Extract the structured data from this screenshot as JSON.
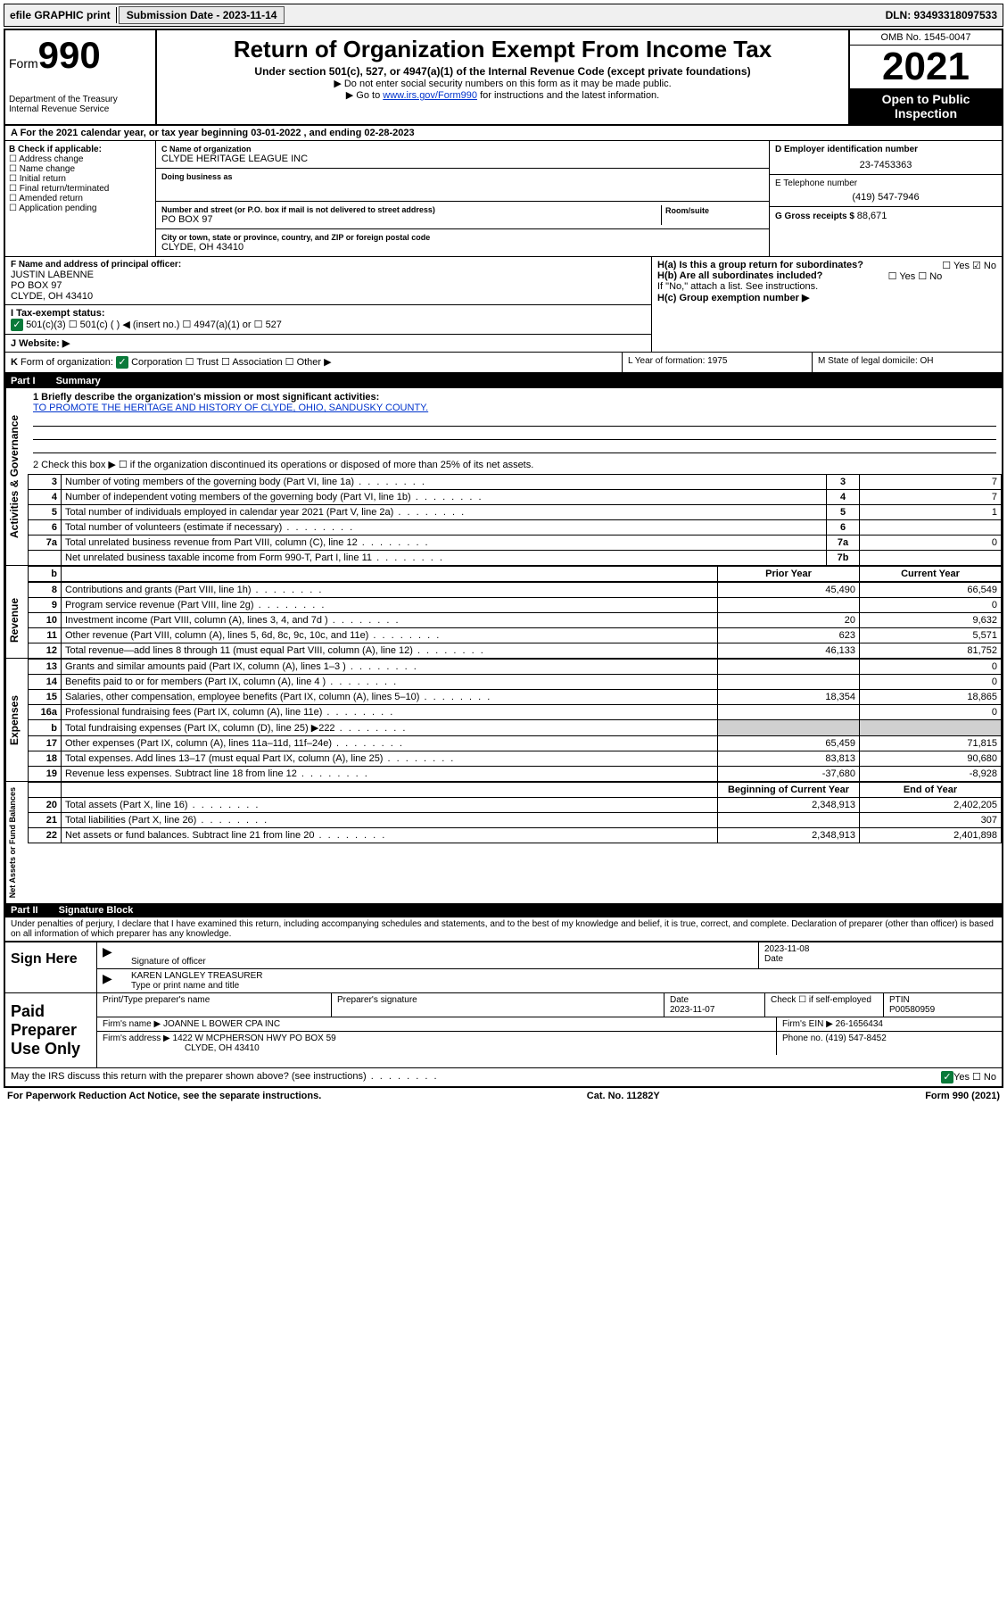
{
  "top": {
    "efile": "efile GRAPHIC print",
    "submission_label": "Submission Date - 2023-11-14",
    "dln_label": "DLN: 93493318097533"
  },
  "header": {
    "form_word": "Form",
    "form_num": "990",
    "dept": "Department of the Treasury",
    "irs": "Internal Revenue Service",
    "title": "Return of Organization Exempt From Income Tax",
    "subtitle": "Under section 501(c), 527, or 4947(a)(1) of the Internal Revenue Code (except private foundations)",
    "note1": "▶ Do not enter social security numbers on this form as it may be made public.",
    "note2_pre": "▶ Go to ",
    "note2_link": "www.irs.gov/Form990",
    "note2_post": " for instructions and the latest information.",
    "omb": "OMB No. 1545-0047",
    "year": "2021",
    "open": "Open to Public Inspection"
  },
  "row_a": "A For the 2021 calendar year, or tax year beginning 03-01-2022   , and ending 02-28-2023",
  "col_b": {
    "label": "B Check if applicable:",
    "opts": [
      "☐ Address change",
      "☐ Name change",
      "☐ Initial return",
      "☐ Final return/terminated",
      "☐ Amended return",
      "☐ Application pending"
    ]
  },
  "col_c": {
    "name_lab": "C Name of organization",
    "name": "CLYDE HERITAGE LEAGUE INC",
    "dba_lab": "Doing business as",
    "dba": "",
    "addr_lab": "Number and street (or P.O. box if mail is not delivered to street address)",
    "room_lab": "Room/suite",
    "addr": "PO BOX 97",
    "city_lab": "City or town, state or province, country, and ZIP or foreign postal code",
    "city": "CLYDE, OH  43410"
  },
  "col_de": {
    "d_lab": "D Employer identification number",
    "d_val": "23-7453363",
    "e_lab": "E Telephone number",
    "e_val": "(419) 547-7946",
    "g_lab": "G Gross receipts $ ",
    "g_val": "88,671"
  },
  "f": {
    "lab": "F  Name and address of principal officer:",
    "name": "JUSTIN LABENNE",
    "addr1": "PO BOX 97",
    "addr2": "CLYDE, OH  43410"
  },
  "i": {
    "lab": "I   Tax-exempt status:",
    "opts": "501(c)(3)    ☐   501(c) (  ) ◀ (insert no.)     ☐  4947(a)(1) or   ☐  527"
  },
  "j": {
    "lab": "J   Website: ▶"
  },
  "h": {
    "a": "H(a)  Is this a group return for subordinates?",
    "a_ans": "☐ Yes  ☑ No",
    "b": "H(b)  Are all subordinates included?",
    "b_ans": "☐ Yes  ☐ No",
    "b_note": "If \"No,\" attach a list. See instructions.",
    "c": "H(c)  Group exemption number ▶"
  },
  "k": "K Form of organization:  ☑ Corporation  ☐ Trust  ☐ Association  ☐ Other ▶",
  "l": "L Year of formation: 1975",
  "m": "M State of legal domicile: OH",
  "part1": {
    "num": "Part I",
    "title": "Summary"
  },
  "brief": {
    "q1": "1  Briefly describe the organization's mission or most significant activities:",
    "ans": "TO PROMOTE THE HERITAGE AND HISTORY OF CLYDE, OHIO, SANDUSKY COUNTY.",
    "q2": "2  Check this box ▶ ☐  if the organization discontinued its operations or disposed of more than 25% of its net assets."
  },
  "gov_rows": [
    {
      "n": "3",
      "d": "Number of voting members of the governing body (Part VI, line 1a)",
      "box": "3",
      "v": "7"
    },
    {
      "n": "4",
      "d": "Number of independent voting members of the governing body (Part VI, line 1b)",
      "box": "4",
      "v": "7"
    },
    {
      "n": "5",
      "d": "Total number of individuals employed in calendar year 2021 (Part V, line 2a)",
      "box": "5",
      "v": "1"
    },
    {
      "n": "6",
      "d": "Total number of volunteers (estimate if necessary)",
      "box": "6",
      "v": ""
    },
    {
      "n": "7a",
      "d": "Total unrelated business revenue from Part VIII, column (C), line 12",
      "box": "7a",
      "v": "0"
    },
    {
      "n": "",
      "d": "Net unrelated business taxable income from Form 990-T, Part I, line 11",
      "box": "7b",
      "v": ""
    }
  ],
  "col_hdr": {
    "b": "b",
    "prior": "Prior Year",
    "curr": "Current Year"
  },
  "rev_rows": [
    {
      "n": "8",
      "d": "Contributions and grants (Part VIII, line 1h)",
      "p": "45,490",
      "c": "66,549"
    },
    {
      "n": "9",
      "d": "Program service revenue (Part VIII, line 2g)",
      "p": "",
      "c": "0"
    },
    {
      "n": "10",
      "d": "Investment income (Part VIII, column (A), lines 3, 4, and 7d )",
      "p": "20",
      "c": "9,632"
    },
    {
      "n": "11",
      "d": "Other revenue (Part VIII, column (A), lines 5, 6d, 8c, 9c, 10c, and 11e)",
      "p": "623",
      "c": "5,571"
    },
    {
      "n": "12",
      "d": "Total revenue—add lines 8 through 11 (must equal Part VIII, column (A), line 12)",
      "p": "46,133",
      "c": "81,752"
    }
  ],
  "exp_rows": [
    {
      "n": "13",
      "d": "Grants and similar amounts paid (Part IX, column (A), lines 1–3 )",
      "p": "",
      "c": "0"
    },
    {
      "n": "14",
      "d": "Benefits paid to or for members (Part IX, column (A), line 4 )",
      "p": "",
      "c": "0"
    },
    {
      "n": "15",
      "d": "Salaries, other compensation, employee benefits (Part IX, column (A), lines 5–10)",
      "p": "18,354",
      "c": "18,865"
    },
    {
      "n": "16a",
      "d": "Professional fundraising fees (Part IX, column (A), line 11e)",
      "p": "",
      "c": "0"
    },
    {
      "n": "b",
      "d": "Total fundraising expenses (Part IX, column (D), line 25) ▶222",
      "p": "SHADE",
      "c": "SHADE"
    },
    {
      "n": "17",
      "d": "Other expenses (Part IX, column (A), lines 11a–11d, 11f–24e)",
      "p": "65,459",
      "c": "71,815"
    },
    {
      "n": "18",
      "d": "Total expenses. Add lines 13–17 (must equal Part IX, column (A), line 25)",
      "p": "83,813",
      "c": "90,680"
    },
    {
      "n": "19",
      "d": "Revenue less expenses. Subtract line 18 from line 12",
      "p": "-37,680",
      "c": "-8,928"
    }
  ],
  "net_hdr": {
    "beg": "Beginning of Current Year",
    "end": "End of Year"
  },
  "net_rows": [
    {
      "n": "20",
      "d": "Total assets (Part X, line 16)",
      "p": "2,348,913",
      "c": "2,402,205"
    },
    {
      "n": "21",
      "d": "Total liabilities (Part X, line 26)",
      "p": "",
      "c": "307"
    },
    {
      "n": "22",
      "d": "Net assets or fund balances. Subtract line 21 from line 20",
      "p": "2,348,913",
      "c": "2,401,898"
    }
  ],
  "side": {
    "gov": "Activities & Governance",
    "rev": "Revenue",
    "exp": "Expenses",
    "net": "Net Assets or Fund Balances"
  },
  "part2": {
    "num": "Part II",
    "title": "Signature Block"
  },
  "penalty": "Under penalties of perjury, I declare that I have examined this return, including accompanying schedules and statements, and to the best of my knowledge and belief, it is true, correct, and complete. Declaration of preparer (other than officer) is based on all information of which preparer has any knowledge.",
  "sign": {
    "here": "Sign Here",
    "sig_lab": "Signature of officer",
    "date": "2023-11-08",
    "date_lab": "Date",
    "name": "KAREN LANGLEY TREASURER",
    "name_lab": "Type or print name and title"
  },
  "paid": {
    "title": "Paid Preparer Use Only",
    "pt_name_lab": "Print/Type preparer's name",
    "pt_sig_lab": "Preparer's signature",
    "pt_date_lab": "Date",
    "pt_date": "2023-11-07",
    "pt_check": "Check ☐ if self-employed",
    "ptin_lab": "PTIN",
    "ptin": "P00580959",
    "firm_name_lab": "Firm's name    ▶",
    "firm_name": "JOANNE L BOWER CPA INC",
    "firm_ein_lab": "Firm's EIN ▶",
    "firm_ein": "26-1656434",
    "firm_addr_lab": "Firm's address ▶",
    "firm_addr": "1422 W MCPHERSON HWY PO BOX 59",
    "firm_city": "CLYDE, OH  43410",
    "phone_lab": "Phone no.",
    "phone": "(419) 547-8452"
  },
  "may": {
    "q": "May the IRS discuss this return with the preparer shown above? (see instructions)",
    "ans": "☑ Yes   ☐ No"
  },
  "footer": {
    "left": "For Paperwork Reduction Act Notice, see the separate instructions.",
    "mid": "Cat. No. 11282Y",
    "right": "Form 990 (2021)"
  }
}
